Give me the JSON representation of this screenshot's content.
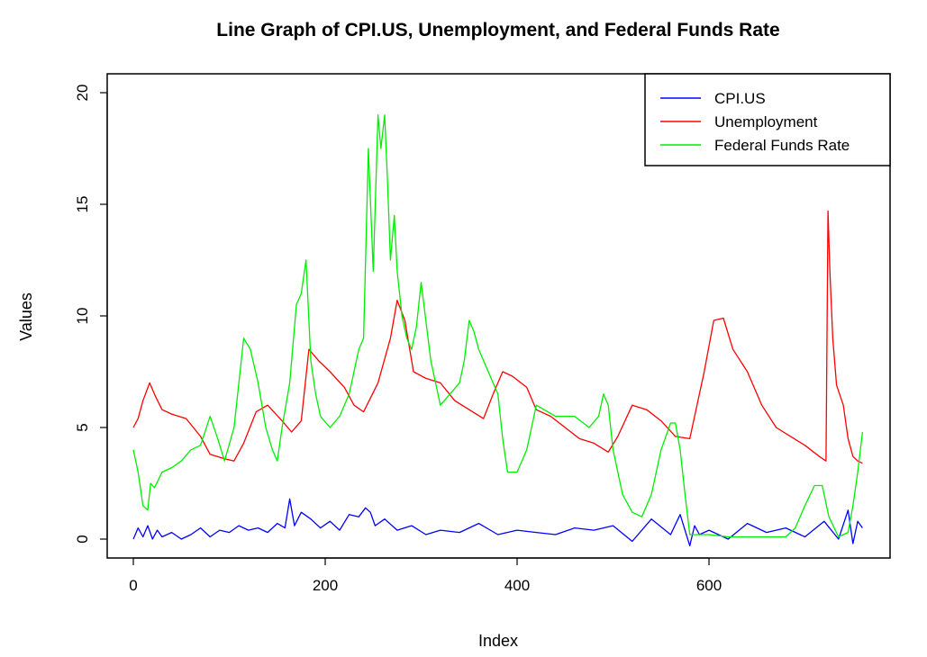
{
  "chart_data": {
    "type": "line",
    "title": "Line Graph of CPI.US, Unemployment, and Federal Funds Rate",
    "xlabel": "Index",
    "ylabel": "Values",
    "xlim": [
      0,
      760
    ],
    "ylim": [
      -0.8,
      20.0
    ],
    "xticks": [
      "0",
      "200",
      "400",
      "600"
    ],
    "yticks": [
      "0",
      "5",
      "10",
      "15",
      "20"
    ],
    "grid": false,
    "legend_position": "top-right",
    "series": [
      {
        "name": "CPI.US",
        "color": "#0000ff",
        "x": [
          0,
          5,
          10,
          15,
          20,
          25,
          30,
          40,
          50,
          60,
          70,
          80,
          90,
          100,
          110,
          120,
          130,
          140,
          150,
          158,
          163,
          168,
          175,
          185,
          195,
          205,
          215,
          225,
          235,
          242,
          247,
          252,
          262,
          275,
          290,
          305,
          320,
          340,
          360,
          380,
          400,
          420,
          440,
          460,
          480,
          500,
          520,
          540,
          560,
          570,
          580,
          585,
          590,
          600,
          620,
          640,
          660,
          680,
          700,
          720,
          735,
          745,
          750,
          755,
          760
        ],
        "y": [
          0.0,
          0.5,
          0.1,
          0.6,
          0.0,
          0.4,
          0.1,
          0.3,
          0.0,
          0.2,
          0.5,
          0.1,
          0.4,
          0.3,
          0.6,
          0.4,
          0.5,
          0.3,
          0.7,
          0.5,
          1.8,
          0.6,
          1.2,
          0.9,
          0.5,
          0.8,
          0.4,
          1.1,
          1.0,
          1.4,
          1.2,
          0.6,
          0.9,
          0.4,
          0.6,
          0.2,
          0.4,
          0.3,
          0.7,
          0.2,
          0.4,
          0.3,
          0.2,
          0.5,
          0.4,
          0.6,
          -0.1,
          0.9,
          0.2,
          1.1,
          -0.3,
          0.6,
          0.2,
          0.4,
          0.0,
          0.7,
          0.3,
          0.5,
          0.1,
          0.8,
          0.0,
          1.3,
          -0.2,
          0.8,
          0.5
        ]
      },
      {
        "name": "Unemployment",
        "color": "#ff0000",
        "x": [
          0,
          5,
          10,
          17,
          23,
          30,
          40,
          55,
          70,
          80,
          95,
          105,
          115,
          128,
          140,
          155,
          165,
          175,
          183,
          193,
          205,
          220,
          230,
          240,
          255,
          268,
          275,
          283,
          292,
          305,
          320,
          335,
          350,
          365,
          375,
          385,
          395,
          410,
          420,
          435,
          450,
          465,
          480,
          495,
          505,
          520,
          535,
          550,
          565,
          580,
          595,
          605,
          615,
          625,
          640,
          655,
          670,
          685,
          700,
          715,
          722,
          724,
          726,
          729,
          733,
          740,
          745,
          750,
          755,
          760
        ],
        "y": [
          5.0,
          5.4,
          6.2,
          7.0,
          6.4,
          5.8,
          5.6,
          5.4,
          4.6,
          3.8,
          3.6,
          3.5,
          4.3,
          5.7,
          6.0,
          5.3,
          4.8,
          5.3,
          8.5,
          8.0,
          7.5,
          6.8,
          6.0,
          5.7,
          7.0,
          9.0,
          10.7,
          9.8,
          7.5,
          7.2,
          7.0,
          6.2,
          5.8,
          5.4,
          6.5,
          7.5,
          7.3,
          6.8,
          5.8,
          5.5,
          5.0,
          4.5,
          4.3,
          3.9,
          4.6,
          6.0,
          5.8,
          5.3,
          4.6,
          4.5,
          7.5,
          9.8,
          9.9,
          8.5,
          7.5,
          6.0,
          5.0,
          4.6,
          4.2,
          3.7,
          3.5,
          14.7,
          12.0,
          9.0,
          6.9,
          6.0,
          4.5,
          3.7,
          3.5,
          3.4
        ]
      },
      {
        "name": "Federal Funds Rate",
        "color": "#00ee00",
        "x": [
          0,
          5,
          10,
          15,
          18,
          22,
          30,
          40,
          50,
          60,
          70,
          80,
          88,
          95,
          105,
          115,
          122,
          130,
          138,
          145,
          150,
          155,
          163,
          170,
          175,
          180,
          185,
          190,
          195,
          205,
          215,
          225,
          235,
          240,
          245,
          250,
          255,
          258,
          262,
          265,
          268,
          272,
          275,
          280,
          285,
          290,
          295,
          300,
          310,
          320,
          330,
          340,
          345,
          350,
          355,
          360,
          370,
          380,
          385,
          390,
          395,
          400,
          410,
          420,
          440,
          460,
          475,
          485,
          490,
          495,
          500,
          510,
          520,
          530,
          540,
          550,
          560,
          565,
          570,
          575,
          580,
          585,
          590,
          600,
          620,
          640,
          660,
          680,
          690,
          700,
          710,
          718,
          725,
          735,
          745,
          750,
          755,
          760
        ],
        "y": [
          4.0,
          3.0,
          1.5,
          1.3,
          2.5,
          2.3,
          3.0,
          3.2,
          3.5,
          4.0,
          4.2,
          5.5,
          4.5,
          3.5,
          5.0,
          9.0,
          8.5,
          7.0,
          5.0,
          4.0,
          3.5,
          5.0,
          7.0,
          10.5,
          11.0,
          12.5,
          8.0,
          6.5,
          5.5,
          5.0,
          5.5,
          6.5,
          8.5,
          9.0,
          17.5,
          12.0,
          19.0,
          17.5,
          19.0,
          16.0,
          12.5,
          14.5,
          12.0,
          10.0,
          9.0,
          8.5,
          9.5,
          11.5,
          8.0,
          6.0,
          6.5,
          7.0,
          8.0,
          9.8,
          9.3,
          8.5,
          7.5,
          6.5,
          4.5,
          3.0,
          3.0,
          3.0,
          4.0,
          6.0,
          5.5,
          5.5,
          5.0,
          5.5,
          6.5,
          6.0,
          4.0,
          2.0,
          1.2,
          1.0,
          2.0,
          4.0,
          5.2,
          5.2,
          4.0,
          2.0,
          0.2,
          0.2,
          0.2,
          0.2,
          0.1,
          0.1,
          0.1,
          0.1,
          0.5,
          1.5,
          2.4,
          2.4,
          1.0,
          0.1,
          0.3,
          1.5,
          3.0,
          4.8
        ]
      }
    ]
  }
}
